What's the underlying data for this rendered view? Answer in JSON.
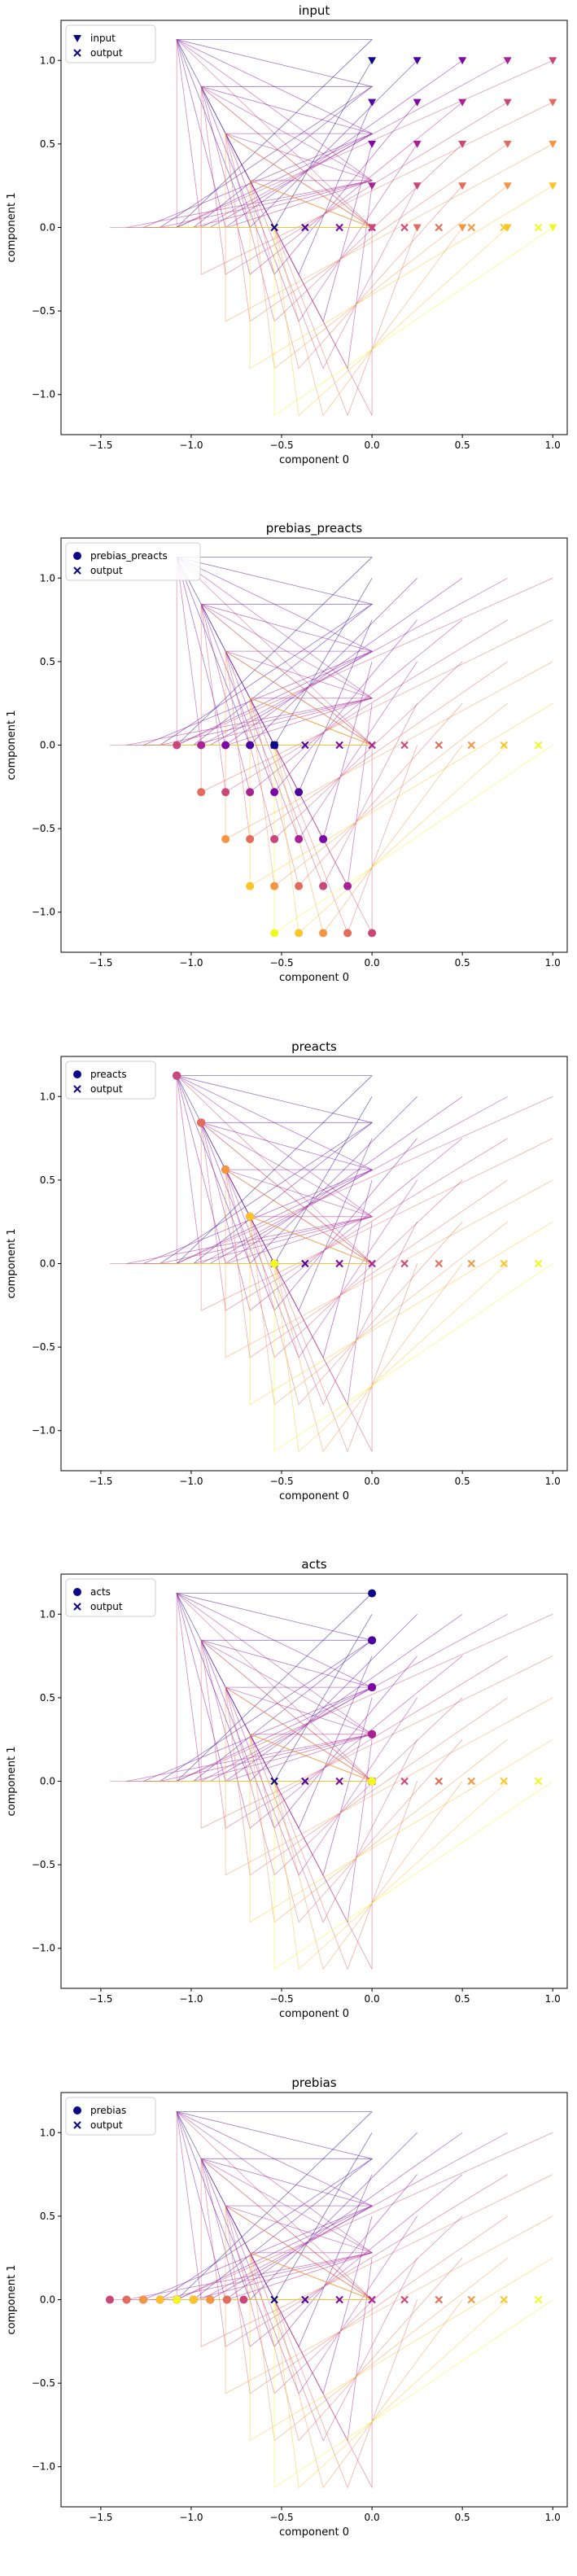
{
  "figure": {
    "colormap": "plasma",
    "colormap_stops": [
      "#0d0887",
      "#5302a3",
      "#8b0aa5",
      "#b83289",
      "#db5c68",
      "#f48849",
      "#febd2a",
      "#f0f921"
    ],
    "trajectories": {
      "description_hidden": true,
      "input_x": [
        0,
        0.25,
        0.5,
        0.75,
        1
      ],
      "input_y": [
        1,
        0.75,
        0.5,
        0.25,
        0
      ],
      "w0": [
        -0.54,
        -0.54
      ],
      "w1": [
        -1.125,
        1.125
      ]
    }
  },
  "chart_data": [
    {
      "type": "scatter",
      "title": "input",
      "xlabel": "component 0",
      "ylabel": "component 1",
      "xlim": [
        -1.72,
        1.08
      ],
      "ylim": [
        -1.24,
        1.24
      ],
      "xticks": [
        -1.5,
        -1.0,
        -0.5,
        0.0,
        0.5,
        1.0
      ],
      "xtick_labels": [
        "−1.5",
        "−1.0",
        "−0.5",
        "0.0",
        "0.5",
        "1.0"
      ],
      "yticks": [
        -1.0,
        -0.5,
        0.0,
        0.5,
        1.0
      ],
      "ytick_labels": [
        "−1.0",
        "−0.5",
        "0.0",
        "0.5",
        "1.0"
      ],
      "legend_position": "top-left",
      "series": [
        {
          "name": "input",
          "marker": "triangle-down"
        },
        {
          "name": "output",
          "marker": "x"
        }
      ]
    },
    {
      "type": "scatter",
      "title": "prebias_preacts",
      "xlabel": "component 0",
      "ylabel": "component 1",
      "xlim": [
        -1.72,
        1.08
      ],
      "ylim": [
        -1.24,
        1.24
      ],
      "xticks": [
        -1.5,
        -1.0,
        -0.5,
        0.0,
        0.5,
        1.0
      ],
      "xtick_labels": [
        "−1.5",
        "−1.0",
        "−0.5",
        "0.0",
        "0.5",
        "1.0"
      ],
      "yticks": [
        -1.0,
        -0.5,
        0.0,
        0.5,
        1.0
      ],
      "ytick_labels": [
        "−1.0",
        "−0.5",
        "0.0",
        "0.5",
        "1.0"
      ],
      "legend_position": "top-left",
      "series": [
        {
          "name": "prebias_preacts",
          "marker": "circle"
        },
        {
          "name": "output",
          "marker": "x"
        }
      ]
    },
    {
      "type": "scatter",
      "title": "preacts",
      "xlabel": "component 0",
      "ylabel": "component 1",
      "xlim": [
        -1.72,
        1.08
      ],
      "ylim": [
        -1.24,
        1.24
      ],
      "xticks": [
        -1.5,
        -1.0,
        -0.5,
        0.0,
        0.5,
        1.0
      ],
      "xtick_labels": [
        "−1.5",
        "−1.0",
        "−0.5",
        "0.0",
        "0.5",
        "1.0"
      ],
      "yticks": [
        -1.0,
        -0.5,
        0.0,
        0.5,
        1.0
      ],
      "ytick_labels": [
        "−1.0",
        "−0.5",
        "0.0",
        "0.5",
        "1.0"
      ],
      "legend_position": "top-left",
      "series": [
        {
          "name": "preacts",
          "marker": "circle"
        },
        {
          "name": "output",
          "marker": "x"
        }
      ]
    },
    {
      "type": "scatter",
      "title": "acts",
      "xlabel": "component 0",
      "ylabel": "component 1",
      "xlim": [
        -1.72,
        1.08
      ],
      "ylim": [
        -1.24,
        1.24
      ],
      "xticks": [
        -1.5,
        -1.0,
        -0.5,
        0.0,
        0.5,
        1.0
      ],
      "xtick_labels": [
        "−1.5",
        "−1.0",
        "−0.5",
        "0.0",
        "0.5",
        "1.0"
      ],
      "yticks": [
        -1.0,
        -0.5,
        0.0,
        0.5,
        1.0
      ],
      "ytick_labels": [
        "−1.0",
        "−0.5",
        "0.0",
        "0.5",
        "1.0"
      ],
      "legend_position": "top-left",
      "series": [
        {
          "name": "acts",
          "marker": "circle"
        },
        {
          "name": "output",
          "marker": "x"
        }
      ]
    },
    {
      "type": "scatter",
      "title": "prebias",
      "xlabel": "component 0",
      "ylabel": "component 1",
      "xlim": [
        -1.72,
        1.08
      ],
      "ylim": [
        -1.24,
        1.24
      ],
      "xticks": [
        -1.5,
        -1.0,
        -0.5,
        0.0,
        0.5,
        1.0
      ],
      "xtick_labels": [
        "−1.5",
        "−1.0",
        "−0.5",
        "0.0",
        "0.5",
        "1.0"
      ],
      "yticks": [
        -1.0,
        -0.5,
        0.0,
        0.5,
        1.0
      ],
      "ytick_labels": [
        "−1.0",
        "−0.5",
        "0.0",
        "0.5",
        "1.0"
      ],
      "legend_position": "top-left",
      "series": [
        {
          "name": "prebias",
          "marker": "circle"
        },
        {
          "name": "output",
          "marker": "x"
        }
      ]
    }
  ]
}
